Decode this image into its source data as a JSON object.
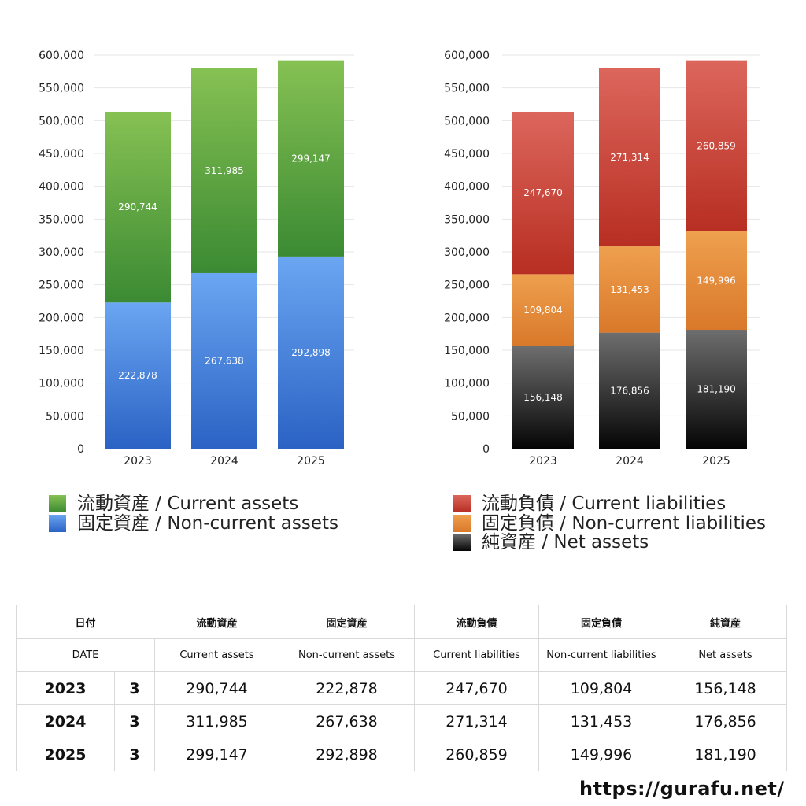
{
  "chart_data": [
    {
      "type": "bar",
      "stacked": true,
      "categories": [
        "2023",
        "2024",
        "2025"
      ],
      "ylim": [
        0,
        600000
      ],
      "yticks": [
        "0",
        "50,000",
        "100,000",
        "150,000",
        "200,000",
        "250,000",
        "300,000",
        "350,000",
        "400,000",
        "450,000",
        "500,000",
        "550,000",
        "600,000"
      ],
      "ytick_values": [
        0,
        50000,
        100000,
        150000,
        200000,
        250000,
        300000,
        350000,
        400000,
        450000,
        500000,
        550000,
        600000
      ],
      "grid": true,
      "legend_position": "bottom",
      "series": [
        {
          "name": "固定資産 / Non-current assets",
          "values": [
            222878,
            267638,
            292898
          ],
          "labels": [
            "222,878",
            "267,638",
            "292,898"
          ],
          "color_top": "#6aa6f2",
          "color_bottom": "#2b62c4"
        },
        {
          "name": "流動資産 / Current assets",
          "values": [
            290744,
            311985,
            299147
          ],
          "labels": [
            "290,744",
            "311,985",
            "299,147"
          ],
          "color_top": "#86c153",
          "color_bottom": "#3b8a33"
        }
      ],
      "legend": [
        {
          "label": "流動資産 / Current assets",
          "color_top": "#86c153",
          "color_bottom": "#3b8a33"
        },
        {
          "label": "固定資産 / Non-current assets",
          "color_top": "#6aa6f2",
          "color_bottom": "#2b62c4"
        }
      ]
    },
    {
      "type": "bar",
      "stacked": true,
      "categories": [
        "2023",
        "2024",
        "2025"
      ],
      "ylim": [
        0,
        600000
      ],
      "yticks": [
        "0",
        "50,000",
        "100,000",
        "150,000",
        "200,000",
        "250,000",
        "300,000",
        "350,000",
        "400,000",
        "450,000",
        "500,000",
        "550,000",
        "600,000"
      ],
      "ytick_values": [
        0,
        50000,
        100000,
        150000,
        200000,
        250000,
        300000,
        350000,
        400000,
        450000,
        500000,
        550000,
        600000
      ],
      "grid": true,
      "legend_position": "bottom",
      "series": [
        {
          "name": "純資産 / Net assets",
          "values": [
            156148,
            176856,
            181190
          ],
          "labels": [
            "156,148",
            "176,856",
            "181,190"
          ],
          "color_top": "#6e6e6e",
          "color_bottom": "#050505"
        },
        {
          "name": "固定負債 / Non-current liabilities",
          "values": [
            109804,
            131453,
            149996
          ],
          "labels": [
            "109,804",
            "131,453",
            "149,996"
          ],
          "color_top": "#eea04e",
          "color_bottom": "#d9782a"
        },
        {
          "name": "流動負債 / Current liabilities",
          "values": [
            247670,
            271314,
            260859
          ],
          "labels": [
            "247,670",
            "271,314",
            "260,859"
          ],
          "color_top": "#dc665c",
          "color_bottom": "#b82e22"
        }
      ],
      "legend": [
        {
          "label": "流動負債 / Current liabilities",
          "color_top": "#dc665c",
          "color_bottom": "#b82e22"
        },
        {
          "label": "固定負債 / Non-current liabilities",
          "color_top": "#eea04e",
          "color_bottom": "#d9782a"
        },
        {
          "label": "純資産 / Net assets",
          "color_top": "#6e6e6e",
          "color_bottom": "#050505"
        }
      ]
    }
  ],
  "table": {
    "header_jp": {
      "date": "日付",
      "c1": "流動資産",
      "c2": "固定資産",
      "c3": "流動負債",
      "c4": "固定負債",
      "c5": "純資産"
    },
    "header_en": {
      "date": "DATE",
      "c1": "Current assets",
      "c2": "Non-current assets",
      "c3": "Current liabilities",
      "c4": "Non-current liabilities",
      "c5": "Net assets"
    },
    "rows": [
      {
        "year": "2023",
        "month": "3",
        "c1": "290,744",
        "c2": "222,878",
        "c3": "247,670",
        "c4": "109,804",
        "c5": "156,148"
      },
      {
        "year": "2024",
        "month": "3",
        "c1": "311,985",
        "c2": "267,638",
        "c3": "271,314",
        "c4": "131,453",
        "c5": "176,856"
      },
      {
        "year": "2025",
        "month": "3",
        "c1": "299,147",
        "c2": "292,898",
        "c3": "260,859",
        "c4": "149,996",
        "c5": "181,190"
      }
    ]
  },
  "footer": {
    "site": "https://gurafu.net/"
  }
}
